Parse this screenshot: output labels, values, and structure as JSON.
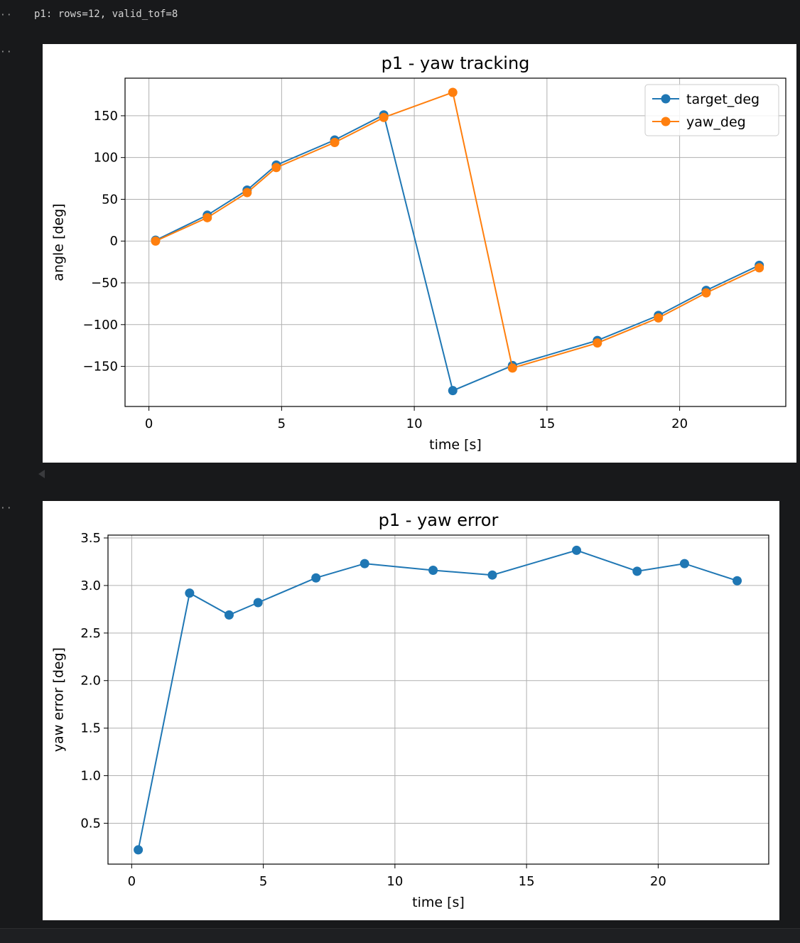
{
  "notebook": {
    "gutter_marker": "··",
    "stdout_line": "p1: rows=12, valid_tof=8"
  },
  "colors": {
    "target_deg": "#1f77b4",
    "yaw_deg": "#ff7f0e",
    "grid": "#b0b0b0",
    "background": "#18191b"
  },
  "chart_data": [
    {
      "type": "line",
      "title": "p1 - yaw tracking",
      "xlabel": "time [s]",
      "ylabel": "angle [deg]",
      "xlim": [
        -0.9,
        24.0
      ],
      "ylim": [
        -198,
        195
      ],
      "xticks": [
        0,
        5,
        10,
        15,
        20
      ],
      "yticks": [
        -150,
        -100,
        -50,
        0,
        50,
        100,
        150
      ],
      "grid": true,
      "legend_position": "top-right",
      "x": [
        0.25,
        2.2,
        3.7,
        4.8,
        7.0,
        8.85,
        11.45,
        13.7,
        16.9,
        19.2,
        21.0,
        23.0
      ],
      "series": [
        {
          "name": "target_deg",
          "color": "#1f77b4",
          "values": [
            1,
            31,
            61,
            91,
            121,
            151,
            -179,
            -149,
            -119,
            -89,
            -59,
            -29
          ]
        },
        {
          "name": "yaw_deg",
          "color": "#ff7f0e",
          "values": [
            0,
            28,
            58,
            88,
            118,
            148,
            178,
            -152,
            -122,
            -92,
            -62,
            -32
          ]
        }
      ]
    },
    {
      "type": "line",
      "title": "p1 - yaw error",
      "xlabel": "time [s]",
      "ylabel": "yaw error [deg]",
      "xlim": [
        -0.9,
        24.2
      ],
      "ylim": [
        0.07,
        3.53
      ],
      "xticks": [
        0,
        5,
        10,
        15,
        20
      ],
      "yticks": [
        0.5,
        1.0,
        1.5,
        2.0,
        2.5,
        3.0,
        3.5
      ],
      "grid": true,
      "x": [
        0.25,
        2.2,
        3.7,
        4.8,
        7.0,
        8.85,
        11.45,
        13.7,
        16.9,
        19.2,
        21.0,
        23.0
      ],
      "series": [
        {
          "color": "#1f77b4",
          "values": [
            0.22,
            2.92,
            2.69,
            2.82,
            3.08,
            3.23,
            3.16,
            3.11,
            3.37,
            3.15,
            3.23,
            3.05
          ]
        }
      ]
    }
  ]
}
